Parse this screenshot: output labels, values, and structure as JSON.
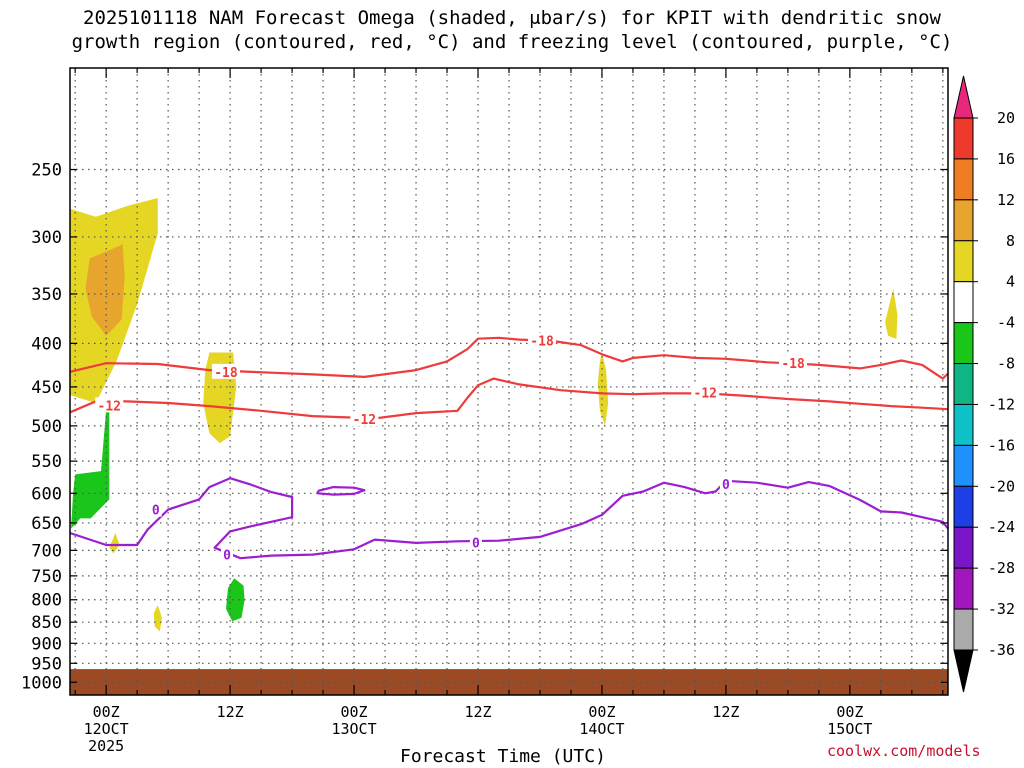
{
  "title_line1": "2025101118 NAM Forecast Omega (shaded, μbar/s) for KPIT with dendritic snow",
  "title_line2": "growth region (contoured, red, °C) and freezing level (contoured, purple, °C)",
  "watermark": "coolwx.com/models",
  "chart_data": {
    "type": "heatmap",
    "title": "2025101118 NAM Forecast Omega (shaded, μbar/s) for KPIT with dendritic snow growth region (contoured, red, °C) and freezing level (contoured, purple, °C)",
    "xlabel": "Forecast Time (UTC)",
    "ylabel": "",
    "x_range_hours": [
      -3.5,
      81.5
    ],
    "y_axis": {
      "unit": "hPa",
      "scale": "log-pressure",
      "range": [
        1035,
        190
      ],
      "ticks": [
        250,
        300,
        350,
        400,
        450,
        500,
        550,
        600,
        650,
        700,
        750,
        800,
        850,
        900,
        950,
        1000
      ]
    },
    "x_ticks": [
      {
        "hour": 0,
        "label": "00Z",
        "date": "12OCT",
        "year": "2025"
      },
      {
        "hour": 12,
        "label": "12Z",
        "date": "",
        "year": ""
      },
      {
        "hour": 24,
        "label": "00Z",
        "date": "13OCT",
        "year": ""
      },
      {
        "hour": 36,
        "label": "12Z",
        "date": "",
        "year": ""
      },
      {
        "hour": 48,
        "label": "00Z",
        "date": "14OCT",
        "year": ""
      },
      {
        "hour": 60,
        "label": "12Z",
        "date": "",
        "year": ""
      },
      {
        "hour": 72,
        "label": "00Z",
        "date": "15OCT",
        "year": ""
      }
    ],
    "colorbar": {
      "labels": [
        "20",
        "16",
        "12",
        "8",
        "4",
        "-4",
        "-8",
        "-12",
        "-16",
        "-20",
        "-24",
        "-28",
        "-32",
        "-36"
      ],
      "colors": [
        "#e8287a",
        "#ee3a2c",
        "#ef7e22",
        "#e8a52e",
        "#e6d624",
        "#ffffff",
        "#19c619",
        "#0fb584",
        "#0fc2c8",
        "#1e90ff",
        "#1e3ee6",
        "#7a16c8",
        "#a216be",
        "#aaaaaa",
        "#000000"
      ]
    },
    "series": [
      {
        "name": "-18",
        "kind": "dendritic contour",
        "color": "#ee3b3b",
        "labels": [
          {
            "hour": 11.6,
            "p": 432,
            "text": "-18"
          },
          {
            "hour": 42.2,
            "p": 397,
            "text": "-18"
          },
          {
            "hour": 66.5,
            "p": 422,
            "text": "-18"
          }
        ],
        "points": [
          [
            -3.5,
            432
          ],
          [
            0,
            422
          ],
          [
            5,
            423
          ],
          [
            10,
            430
          ],
          [
            16,
            433
          ],
          [
            20,
            435
          ],
          [
            25,
            438
          ],
          [
            30,
            430
          ],
          [
            33,
            420
          ],
          [
            35,
            406
          ],
          [
            36,
            395
          ],
          [
            38,
            394
          ],
          [
            40,
            396
          ],
          [
            43,
            397
          ],
          [
            46,
            402
          ],
          [
            48,
            412
          ],
          [
            50,
            420
          ],
          [
            51,
            416
          ],
          [
            54,
            413
          ],
          [
            57,
            416
          ],
          [
            60,
            417
          ],
          [
            62,
            419
          ],
          [
            64,
            421
          ],
          [
            66,
            422
          ],
          [
            69,
            424
          ],
          [
            71,
            426
          ],
          [
            73,
            428
          ],
          [
            75,
            424
          ],
          [
            77,
            419
          ],
          [
            79,
            424
          ],
          [
            81,
            440
          ],
          [
            81.5,
            434
          ]
        ]
      },
      {
        "name": "-12",
        "kind": "dendritic contour",
        "color": "#ee3b3b",
        "labels": [
          {
            "hour": 0.3,
            "p": 473,
            "text": "-12"
          },
          {
            "hour": 25.0,
            "p": 491,
            "text": "-12"
          },
          {
            "hour": 58.0,
            "p": 457,
            "text": "-12"
          }
        ],
        "points": [
          [
            -3.5,
            482
          ],
          [
            -1,
            468
          ],
          [
            2,
            468
          ],
          [
            6,
            470
          ],
          [
            10,
            474
          ],
          [
            15,
            480
          ],
          [
            20,
            487
          ],
          [
            26,
            490
          ],
          [
            30,
            483
          ],
          [
            34,
            480
          ],
          [
            35,
            463
          ],
          [
            36,
            448
          ],
          [
            37.5,
            440
          ],
          [
            40,
            447
          ],
          [
            44,
            454
          ],
          [
            48,
            458
          ],
          [
            51,
            459
          ],
          [
            54,
            458
          ],
          [
            58,
            458
          ],
          [
            62,
            461
          ],
          [
            66,
            465
          ],
          [
            70,
            468
          ],
          [
            73,
            471
          ],
          [
            76,
            474
          ],
          [
            79,
            476
          ],
          [
            81.5,
            478
          ]
        ]
      },
      {
        "name": "0",
        "kind": "freezing level",
        "color": "#9b1fd0",
        "labels": [
          {
            "hour": 4.8,
            "p": 627,
            "text": "0"
          },
          {
            "hour": 11.7,
            "p": 708,
            "text": "0"
          },
          {
            "hour": 35.8,
            "p": 685,
            "text": "0"
          },
          {
            "hour": 60.0,
            "p": 585,
            "text": "0"
          }
        ],
        "points": [
          [
            -3.5,
            668
          ],
          [
            0,
            690
          ],
          [
            3,
            690
          ],
          [
            4,
            662
          ],
          [
            6,
            627
          ],
          [
            9,
            610
          ],
          [
            10,
            590
          ],
          [
            12,
            576
          ],
          [
            14,
            586
          ],
          [
            16,
            598
          ],
          [
            18,
            606
          ],
          [
            18,
            640
          ],
          [
            14,
            656
          ],
          [
            12,
            665
          ],
          [
            10.5,
            695
          ],
          [
            13,
            715
          ],
          [
            16,
            710
          ],
          [
            20,
            708
          ],
          [
            24,
            698
          ],
          [
            26,
            680
          ],
          [
            30,
            686
          ],
          [
            34,
            683
          ],
          [
            38,
            682
          ],
          [
            42,
            675
          ],
          [
            46,
            652
          ],
          [
            48,
            636
          ],
          [
            50,
            604
          ],
          [
            52,
            597
          ],
          [
            54,
            583
          ],
          [
            56,
            590
          ],
          [
            58,
            600
          ],
          [
            59,
            597
          ],
          [
            60,
            580
          ],
          [
            63,
            583
          ],
          [
            66,
            591
          ],
          [
            68,
            582
          ],
          [
            70,
            588
          ],
          [
            73,
            611
          ],
          [
            75,
            630
          ],
          [
            77,
            632
          ],
          [
            79,
            640
          ],
          [
            81,
            648
          ],
          [
            81.5,
            660
          ]
        ]
      },
      {
        "name": "0-closed",
        "kind": "freezing level",
        "color": "#9b1fd0",
        "labels": [],
        "points": [
          [
            20.5,
            596
          ],
          [
            22,
            590
          ],
          [
            24,
            591
          ],
          [
            25,
            595
          ],
          [
            24,
            601
          ],
          [
            22,
            602
          ],
          [
            20.5,
            600
          ],
          [
            20.5,
            596
          ]
        ]
      }
    ],
    "shaded_regions": [
      {
        "value": "4 to 8",
        "color": "#e6d624",
        "points": [
          [
            -3.5,
            278
          ],
          [
            -1,
            284
          ],
          [
            2,
            276
          ],
          [
            5,
            270
          ],
          [
            5,
            297
          ],
          [
            3,
            360
          ],
          [
            1,
            420
          ],
          [
            -1,
            470
          ],
          [
            -3.5,
            460
          ]
        ]
      },
      {
        "value": "8 to 12",
        "color": "#e8a52e",
        "points": [
          [
            -1.6,
            318
          ],
          [
            0,
            312
          ],
          [
            1.6,
            306
          ],
          [
            1.8,
            335
          ],
          [
            1.5,
            375
          ],
          [
            0,
            392
          ],
          [
            -1.4,
            372
          ],
          [
            -2,
            345
          ]
        ]
      },
      {
        "value": "4 to 8",
        "color": "#e6d624",
        "points": [
          [
            2.6,
            290
          ],
          [
            3.2,
            282
          ],
          [
            3.5,
            302
          ],
          [
            3.3,
            318
          ],
          [
            2.8,
            312
          ]
        ]
      },
      {
        "value": "4 to 8",
        "color": "#e6d624",
        "points": [
          [
            10,
            410
          ],
          [
            12.3,
            410
          ],
          [
            12.6,
            450
          ],
          [
            12,
            514
          ],
          [
            11,
            524
          ],
          [
            10,
            510
          ],
          [
            9.4,
            470
          ],
          [
            9.6,
            430
          ]
        ]
      },
      {
        "value": "4 to 8",
        "color": "#e6d624",
        "points": [
          [
            47.8,
            420
          ],
          [
            48,
            410
          ],
          [
            48.4,
            430
          ],
          [
            48.6,
            470
          ],
          [
            48.3,
            500
          ],
          [
            47.8,
            480
          ],
          [
            47.6,
            445
          ]
        ]
      },
      {
        "value": "4 to 8",
        "color": "#e6d624",
        "points": [
          [
            75.4,
            378
          ],
          [
            76.2,
            345
          ],
          [
            76.6,
            370
          ],
          [
            76.5,
            395
          ],
          [
            75.7,
            392
          ]
        ]
      },
      {
        "value": "4 to 8",
        "color": "#e6d624",
        "points": [
          [
            0.3,
            695
          ],
          [
            0.9,
            668
          ],
          [
            1.3,
            690
          ],
          [
            0.7,
            706
          ]
        ]
      },
      {
        "value": "4 to 8",
        "color": "#e6d624",
        "points": [
          [
            4.6,
            830
          ],
          [
            5.0,
            812
          ],
          [
            5.4,
            840
          ],
          [
            5.2,
            872
          ],
          [
            4.7,
            860
          ]
        ]
      },
      {
        "value": "-8 to -4",
        "color": "#19c619",
        "points": [
          [
            0,
            478
          ],
          [
            0.3,
            468
          ],
          [
            0.3,
            610
          ],
          [
            -1.5,
            642
          ],
          [
            -2.5,
            642
          ],
          [
            -3.4,
            660
          ],
          [
            -3.2,
            600
          ],
          [
            -3,
            570
          ],
          [
            -0.5,
            565
          ]
        ]
      },
      {
        "value": "-8 to -4",
        "color": "#19c619",
        "points": [
          [
            11.8,
            775
          ],
          [
            12.4,
            755
          ],
          [
            13.3,
            770
          ],
          [
            13.4,
            800
          ],
          [
            13.1,
            840
          ],
          [
            12.2,
            848
          ],
          [
            11.6,
            820
          ]
        ]
      }
    ],
    "ground_pressure_hPa": 965
  }
}
